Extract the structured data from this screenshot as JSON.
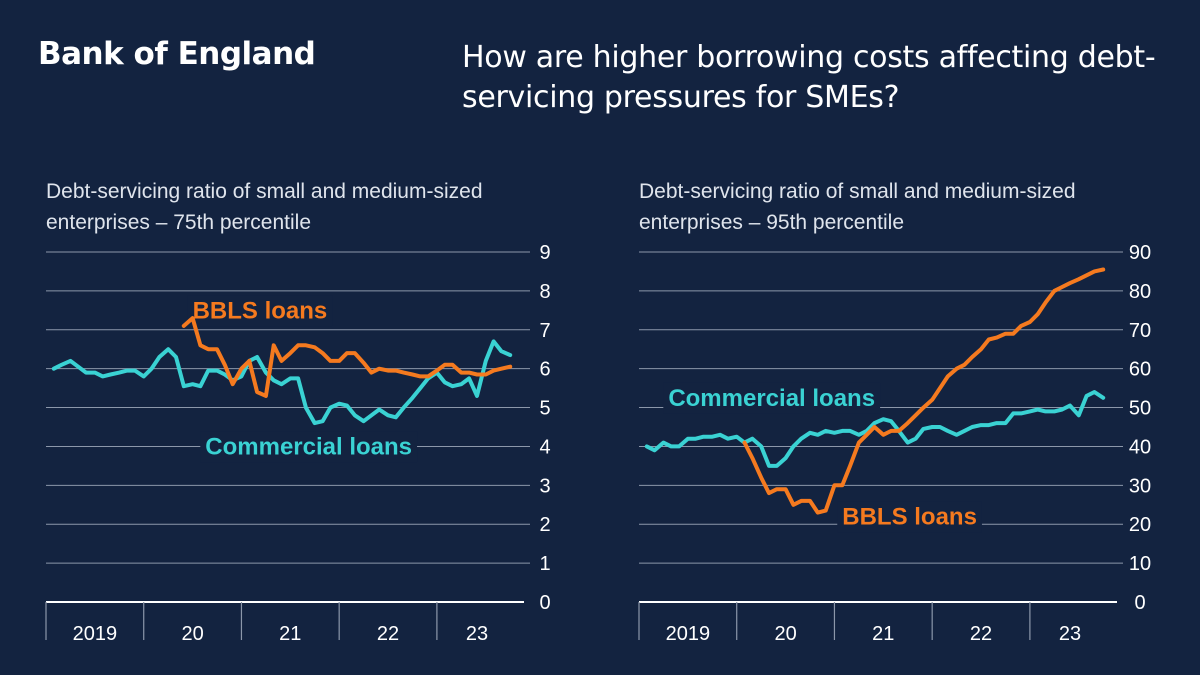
{
  "brand": "Bank of England",
  "headline": "How are higher borrowing costs affecting debt-servicing pressures for SMEs?",
  "colors": {
    "background": "#132340",
    "commercial": "#3ad2d3",
    "bbls": "#f57a1f",
    "grid": "#8c97aa"
  },
  "chart_data": [
    {
      "type": "line",
      "title": "Debt-servicing ratio of small and medium-sized enterprises – 75th percentile",
      "y_ticks": [
        "0",
        "1",
        "2",
        "3",
        "4",
        "5",
        "6",
        "7",
        "8",
        "9"
      ],
      "ylim": [
        0,
        9
      ],
      "x_range": [
        2018.92,
        2023.75
      ],
      "year_boundaries": [
        2018.92,
        2019.92,
        2020.92,
        2021.92,
        2022.92
      ],
      "year_labels": [
        {
          "label": "2019",
          "x": 2019.42
        },
        {
          "label": "20",
          "x": 2020.42
        },
        {
          "label": "21",
          "x": 2021.42
        },
        {
          "label": "22",
          "x": 2022.42
        },
        {
          "label": "23",
          "x": 2023.33
        }
      ],
      "grid": true,
      "series": [
        {
          "name": "Commercial loans",
          "color_key": "commercial",
          "x": [
            2019.0,
            2019.08,
            2019.17,
            2019.25,
            2019.33,
            2019.42,
            2019.5,
            2019.58,
            2019.67,
            2019.75,
            2019.83,
            2019.92,
            2020.0,
            2020.08,
            2020.17,
            2020.25,
            2020.33,
            2020.42,
            2020.5,
            2020.58,
            2020.67,
            2020.75,
            2020.83,
            2020.92,
            2021.0,
            2021.08,
            2021.17,
            2021.25,
            2021.33,
            2021.42,
            2021.5,
            2021.58,
            2021.67,
            2021.75,
            2021.83,
            2021.92,
            2022.0,
            2022.08,
            2022.17,
            2022.25,
            2022.33,
            2022.42,
            2022.5,
            2022.58,
            2022.67,
            2022.75,
            2022.83,
            2022.92,
            2023.0,
            2023.08,
            2023.17,
            2023.25,
            2023.33,
            2023.42,
            2023.5,
            2023.58,
            2023.67
          ],
          "values": [
            6.0,
            6.1,
            6.2,
            6.05,
            5.9,
            5.9,
            5.8,
            5.85,
            5.9,
            5.95,
            5.95,
            5.8,
            6.0,
            6.3,
            6.5,
            6.3,
            5.55,
            5.6,
            5.55,
            5.95,
            5.95,
            5.85,
            5.7,
            5.8,
            6.2,
            6.3,
            5.9,
            5.7,
            5.6,
            5.75,
            5.75,
            5.0,
            4.6,
            4.65,
            5.0,
            5.1,
            5.05,
            4.8,
            4.65,
            4.8,
            4.95,
            4.8,
            4.75,
            5.0,
            5.25,
            5.5,
            5.75,
            5.9,
            5.65,
            5.55,
            5.6,
            5.75,
            5.3,
            6.2,
            6.7,
            6.45,
            6.35
          ]
        },
        {
          "name": "BBLS loans",
          "color_key": "bbls",
          "x": [
            2020.33,
            2020.42,
            2020.5,
            2020.58,
            2020.67,
            2020.75,
            2020.83,
            2020.92,
            2021.0,
            2021.08,
            2021.17,
            2021.25,
            2021.33,
            2021.42,
            2021.5,
            2021.58,
            2021.67,
            2021.75,
            2021.83,
            2021.92,
            2022.0,
            2022.08,
            2022.17,
            2022.25,
            2022.33,
            2022.42,
            2022.5,
            2022.58,
            2022.67,
            2022.75,
            2022.83,
            2022.92,
            2023.0,
            2023.08,
            2023.17,
            2023.25,
            2023.33,
            2023.42,
            2023.5,
            2023.58,
            2023.67
          ],
          "values": [
            7.1,
            7.3,
            6.6,
            6.5,
            6.5,
            6.1,
            5.6,
            6.0,
            6.2,
            5.4,
            5.3,
            6.6,
            6.2,
            6.4,
            6.6,
            6.6,
            6.55,
            6.4,
            6.2,
            6.2,
            6.4,
            6.4,
            6.15,
            5.9,
            6.0,
            5.95,
            5.95,
            5.9,
            5.85,
            5.8,
            5.8,
            5.95,
            6.1,
            6.1,
            5.9,
            5.9,
            5.85,
            5.85,
            5.95,
            6.0,
            6.05
          ]
        }
      ],
      "annotations": [
        {
          "text": "BBLS loans",
          "x": 2020.42,
          "y": 7.5,
          "color_key": "bbls"
        },
        {
          "text": "Commercial loans",
          "x": 2020.55,
          "y": 4.0,
          "color_key": "commercial"
        }
      ]
    },
    {
      "type": "line",
      "title": "Debt-servicing ratio of small and medium-sized enterprises – 95th percentile",
      "y_ticks": [
        "0",
        "10",
        "20",
        "30",
        "40",
        "50",
        "60",
        "70",
        "80",
        "90"
      ],
      "ylim": [
        0,
        90
      ],
      "x_range": [
        2018.92,
        2023.75
      ],
      "year_boundaries": [
        2018.92,
        2019.92,
        2020.92,
        2021.92,
        2022.92
      ],
      "year_labels": [
        {
          "label": "2019",
          "x": 2019.42
        },
        {
          "label": "20",
          "x": 2020.42
        },
        {
          "label": "21",
          "x": 2021.42
        },
        {
          "label": "22",
          "x": 2022.42
        },
        {
          "label": "23",
          "x": 2023.33
        }
      ],
      "grid": true,
      "series": [
        {
          "name": "Commercial loans",
          "color_key": "commercial",
          "x": [
            2019.0,
            2019.08,
            2019.17,
            2019.25,
            2019.33,
            2019.42,
            2019.5,
            2019.58,
            2019.67,
            2019.75,
            2019.83,
            2019.92,
            2020.0,
            2020.08,
            2020.17,
            2020.25,
            2020.33,
            2020.42,
            2020.5,
            2020.58,
            2020.67,
            2020.75,
            2020.83,
            2020.92,
            2021.0,
            2021.08,
            2021.17,
            2021.25,
            2021.33,
            2021.42,
            2021.5,
            2021.58,
            2021.67,
            2021.75,
            2021.83,
            2021.92,
            2022.0,
            2022.08,
            2022.17,
            2022.25,
            2022.33,
            2022.42,
            2022.5,
            2022.58,
            2022.67,
            2022.75,
            2022.83,
            2022.92,
            2023.0,
            2023.08,
            2023.17,
            2023.25,
            2023.33,
            2023.42,
            2023.5,
            2023.58,
            2023.67
          ],
          "values": [
            40,
            39,
            41,
            40,
            40,
            42,
            42,
            42.5,
            42.5,
            43,
            42,
            42.5,
            41,
            42,
            40,
            35,
            35,
            37,
            40,
            42,
            43.5,
            43,
            44,
            43.5,
            44,
            44,
            43,
            44,
            46,
            47,
            46.5,
            44,
            41,
            42,
            44.5,
            45,
            45,
            44,
            43,
            44,
            45,
            45.5,
            45.5,
            46,
            46,
            48.5,
            48.5,
            49,
            49.5,
            49,
            49,
            49.5,
            50.5,
            48,
            53,
            54,
            52.5
          ]
        },
        {
          "name": "BBLS loans",
          "color_key": "bbls",
          "x": [
            2020.0,
            2020.08,
            2020.17,
            2020.25,
            2020.33,
            2020.42,
            2020.5,
            2020.58,
            2020.67,
            2020.75,
            2020.83,
            2020.92,
            2021.0,
            2021.08,
            2021.17,
            2021.25,
            2021.33,
            2021.42,
            2021.5,
            2021.58,
            2021.67,
            2021.75,
            2021.83,
            2021.92,
            2022.0,
            2022.08,
            2022.17,
            2022.25,
            2022.33,
            2022.42,
            2022.5,
            2022.58,
            2022.67,
            2022.75,
            2022.83,
            2022.92,
            2023.0,
            2023.08,
            2023.17,
            2023.25,
            2023.33,
            2023.42,
            2023.5,
            2023.58,
            2023.67
          ],
          "values": [
            41,
            37,
            32,
            28,
            29,
            29,
            25,
            26,
            26,
            23,
            23.5,
            30,
            30,
            35,
            41,
            43,
            45,
            43,
            44,
            44,
            46,
            48,
            50,
            52,
            55,
            58,
            60,
            61,
            63,
            65,
            67.5,
            68,
            69,
            69,
            71,
            72,
            74,
            77,
            80,
            81,
            82,
            83,
            84,
            85,
            85.5
          ]
        }
      ],
      "annotations": [
        {
          "text": "Commercial loans",
          "x": 2019.22,
          "y": 52.5,
          "color_key": "commercial"
        },
        {
          "text": "BBLS loans",
          "x": 2021.0,
          "y": 22,
          "color_key": "bbls"
        }
      ]
    }
  ]
}
